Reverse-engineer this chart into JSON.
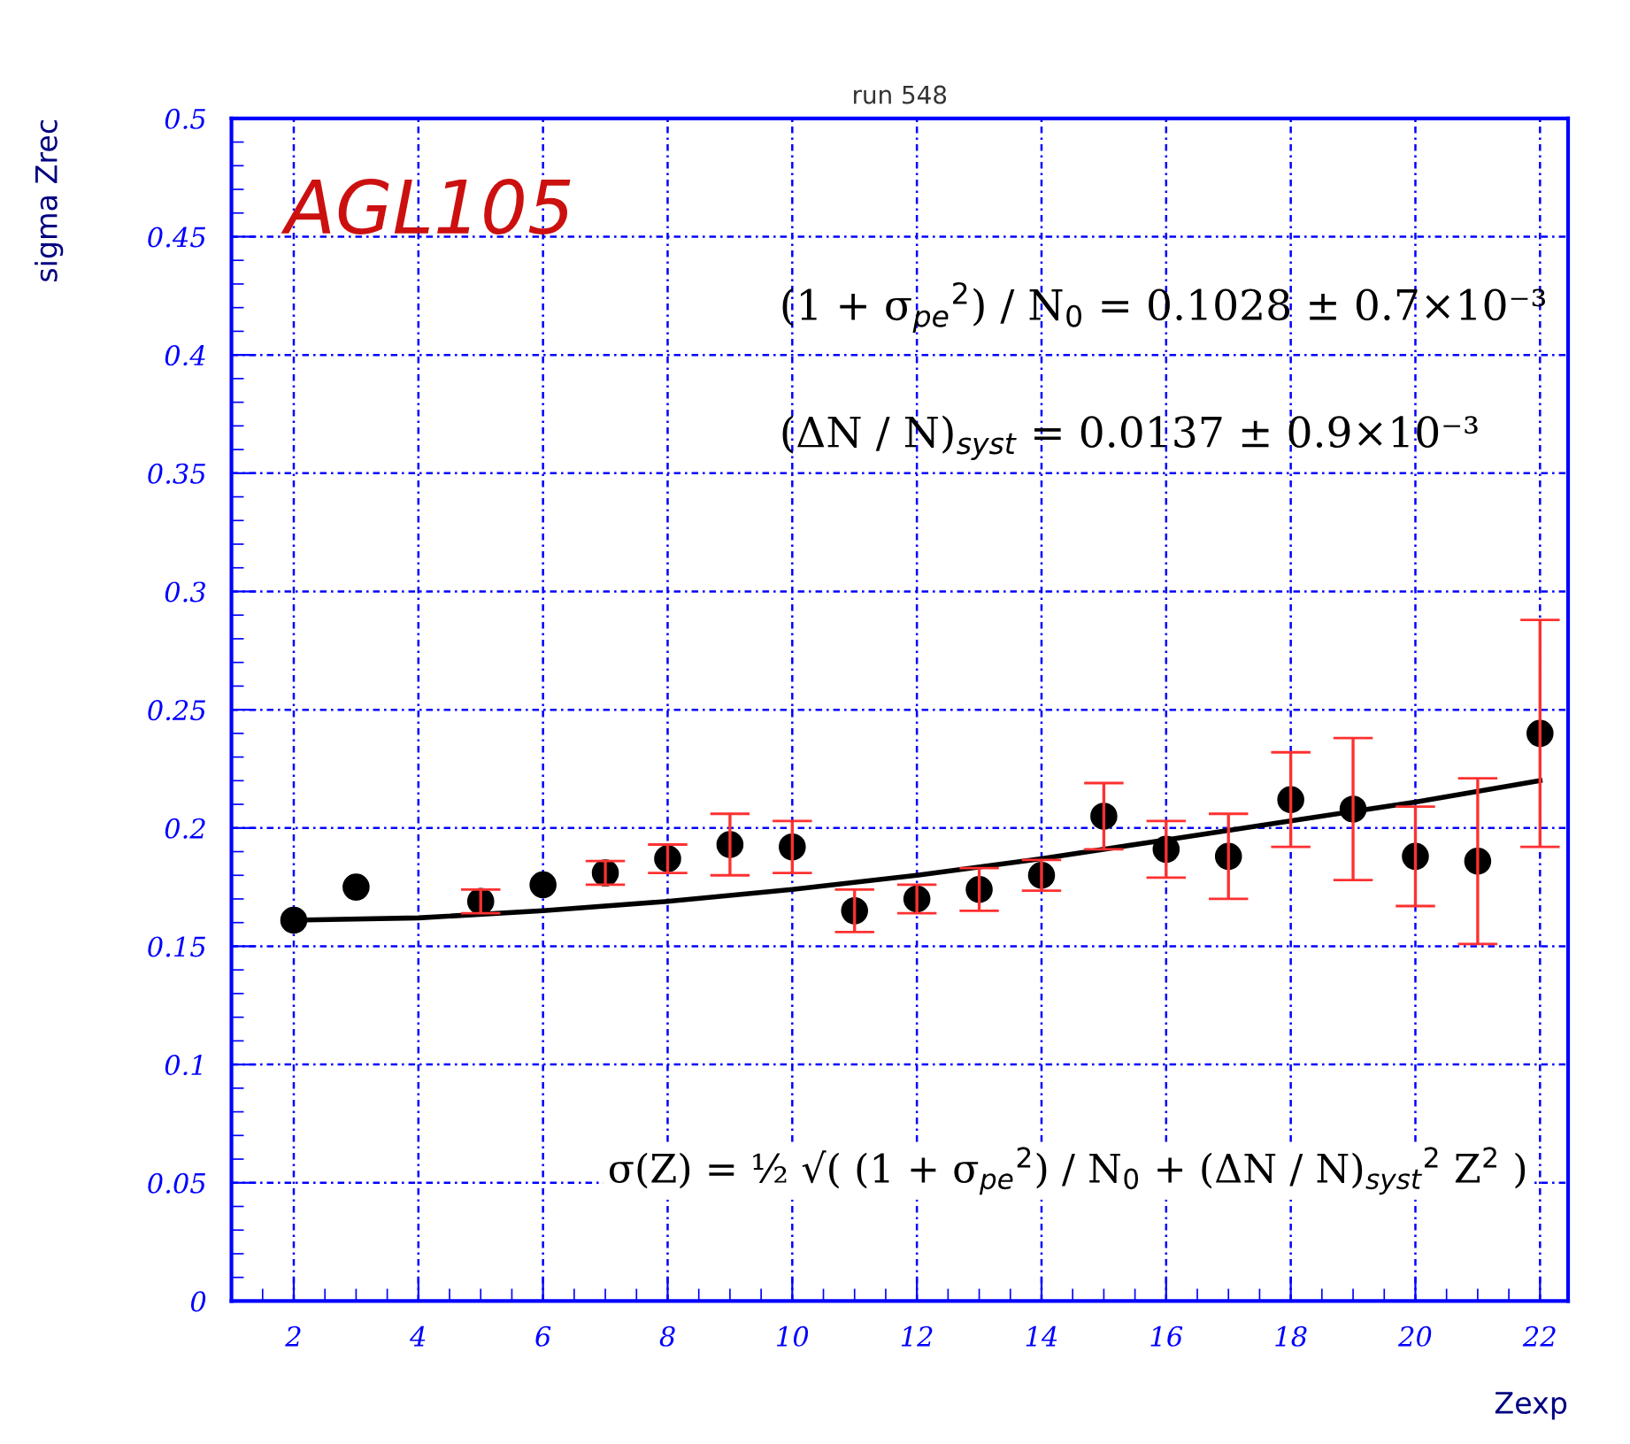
{
  "chart_data": {
    "type": "scatter",
    "title": "run 548",
    "xlabel": "Zexp",
    "ylabel": "sigma Zrec",
    "x": [
      2,
      3,
      5,
      6,
      7,
      8,
      9,
      10,
      11,
      12,
      13,
      14,
      15,
      16,
      17,
      18,
      19,
      20,
      21,
      22
    ],
    "series": [
      {
        "color": "#000000",
        "marker": "circle",
        "values": [
          0.161,
          0.175,
          0.169,
          0.176,
          0.181,
          0.187,
          0.193,
          0.192,
          0.165,
          0.17,
          0.174,
          0.18,
          0.205,
          0.191,
          0.188,
          0.212,
          0.208,
          0.188,
          0.186,
          0.24
        ],
        "errors": [
          null,
          null,
          0.005,
          null,
          0.005,
          0.006,
          0.013,
          0.011,
          0.009,
          0.006,
          0.009,
          0.0065,
          0.014,
          0.012,
          0.018,
          0.02,
          0.03,
          0.021,
          0.035,
          0.048
        ]
      },
      {
        "type": "line",
        "color": "#000000",
        "x": [
          2,
          4,
          6,
          8,
          10,
          12,
          14,
          16,
          18,
          20,
          22
        ],
        "values": [
          0.161,
          0.162,
          0.165,
          0.169,
          0.174,
          0.18,
          0.187,
          0.195,
          0.203,
          0.211,
          0.22
        ]
      }
    ],
    "xlim": [
      1,
      22.45
    ],
    "ylim": [
      0,
      0.5
    ],
    "xticks": [
      2,
      4,
      6,
      8,
      10,
      12,
      14,
      16,
      18,
      20,
      22
    ],
    "yticks": [
      0,
      0.05,
      0.1,
      0.15,
      0.2,
      0.25,
      0.3,
      0.35,
      0.4,
      0.45,
      0.5
    ],
    "grid": true,
    "legend": false,
    "annotations": [
      "AGL105",
      "(1 + σ$_{pe}$$^{2}$) / N$_{0}$ = 0.1028 ± 0.7×10⁻³",
      "(ΔN / N)$_{syst}$ = 0.0137 ± 0.9×10⁻³",
      "σ(Z) = ½ √( (1 + σ$_{pe}$$^{2}$) / N$_{0}$ + (ΔN / N)$_{syst}$$^{2}$ Z$^{2}$ )"
    ]
  }
}
